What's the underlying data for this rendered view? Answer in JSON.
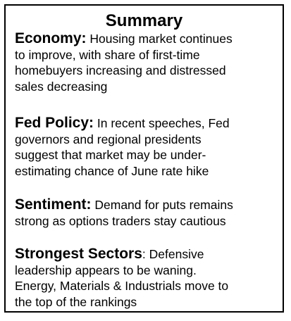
{
  "title": "Summary",
  "sections": [
    {
      "heading": "Economy:",
      "lines": [
        " Housing market continues",
        "to improve, with share of first-time",
        "homebuyers increasing and distressed",
        "sales decreasing"
      ]
    },
    {
      "heading": "Fed Policy:",
      "lines": [
        " In recent speeches, Fed",
        "governors and regional presidents",
        "suggest that market may be under-",
        "estimating chance of June rate hike"
      ]
    },
    {
      "heading": "Sentiment:",
      "lines": [
        " Demand for puts remains",
        "strong as options traders stay cautious"
      ]
    },
    {
      "heading": "Strongest Sectors",
      "lines": [
        ": Defensive",
        "leadership appears to be waning.",
        "Energy, Materials & Industrials move to",
        "the top of the rankings"
      ]
    }
  ]
}
